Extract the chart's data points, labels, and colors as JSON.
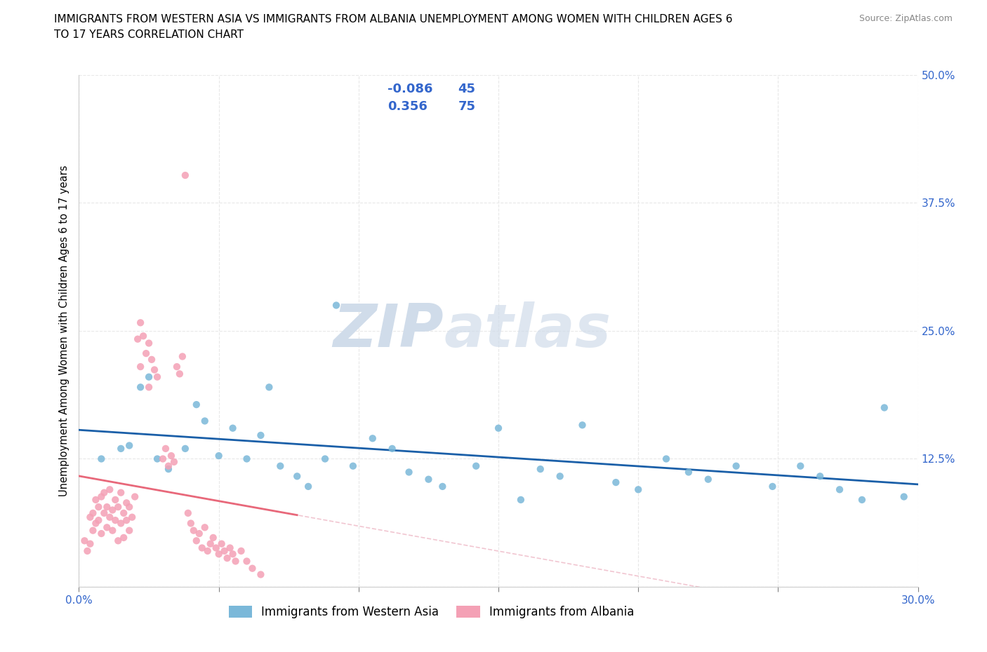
{
  "title_line1": "IMMIGRANTS FROM WESTERN ASIA VS IMMIGRANTS FROM ALBANIA UNEMPLOYMENT AMONG WOMEN WITH CHILDREN AGES 6",
  "title_line2": "TO 17 YEARS CORRELATION CHART",
  "source": "Source: ZipAtlas.com",
  "ylabel": "Unemployment Among Women with Children Ages 6 to 17 years",
  "xlim": [
    0.0,
    0.3
  ],
  "ylim": [
    0.0,
    0.5
  ],
  "xticks": [
    0.0,
    0.05,
    0.1,
    0.15,
    0.2,
    0.25,
    0.3
  ],
  "yticks": [
    0.0,
    0.125,
    0.25,
    0.375,
    0.5
  ],
  "xticklabels": [
    "0.0%",
    "",
    "",
    "",
    "",
    "",
    "30.0%"
  ],
  "yticklabels_right": [
    "",
    "12.5%",
    "25.0%",
    "37.5%",
    "50.0%"
  ],
  "western_asia_R": -0.086,
  "western_asia_N": 45,
  "albania_R": 0.356,
  "albania_N": 75,
  "western_asia_color": "#7ab8d9",
  "albania_color": "#f4a0b5",
  "western_asia_line_color": "#1a5fa8",
  "albania_line_color": "#f4a0b5",
  "albania_dashed_line_color": "#f0c0cc",
  "r_n_color": "#3366cc",
  "legend_label_western": "Immigrants from Western Asia",
  "legend_label_albania": "Immigrants from Albania",
  "background_color": "#ffffff",
  "grid_color": "#e8e8e8",
  "watermark_color": "#d0dcea",
  "wa_x": [
    0.008,
    0.015,
    0.018,
    0.022,
    0.025,
    0.028,
    0.032,
    0.038,
    0.042,
    0.045,
    0.05,
    0.055,
    0.06,
    0.065,
    0.068,
    0.072,
    0.078,
    0.082,
    0.088,
    0.092,
    0.098,
    0.105,
    0.112,
    0.118,
    0.125,
    0.13,
    0.142,
    0.15,
    0.158,
    0.165,
    0.172,
    0.18,
    0.192,
    0.2,
    0.21,
    0.218,
    0.225,
    0.235,
    0.248,
    0.258,
    0.265,
    0.272,
    0.28,
    0.288,
    0.295
  ],
  "wa_y": [
    0.125,
    0.135,
    0.138,
    0.195,
    0.205,
    0.125,
    0.115,
    0.135,
    0.178,
    0.162,
    0.128,
    0.155,
    0.125,
    0.148,
    0.195,
    0.118,
    0.108,
    0.098,
    0.125,
    0.275,
    0.118,
    0.145,
    0.135,
    0.112,
    0.105,
    0.098,
    0.118,
    0.155,
    0.085,
    0.115,
    0.108,
    0.158,
    0.102,
    0.095,
    0.125,
    0.112,
    0.105,
    0.118,
    0.098,
    0.118,
    0.108,
    0.095,
    0.085,
    0.175,
    0.088
  ],
  "alb_x": [
    0.002,
    0.003,
    0.004,
    0.004,
    0.005,
    0.005,
    0.006,
    0.006,
    0.007,
    0.007,
    0.008,
    0.008,
    0.009,
    0.009,
    0.01,
    0.01,
    0.011,
    0.011,
    0.012,
    0.012,
    0.013,
    0.013,
    0.014,
    0.014,
    0.015,
    0.015,
    0.016,
    0.016,
    0.017,
    0.017,
    0.018,
    0.018,
    0.019,
    0.02,
    0.021,
    0.022,
    0.022,
    0.023,
    0.024,
    0.025,
    0.025,
    0.026,
    0.027,
    0.028,
    0.03,
    0.031,
    0.032,
    0.033,
    0.034,
    0.035,
    0.036,
    0.037,
    0.038,
    0.039,
    0.04,
    0.041,
    0.042,
    0.043,
    0.044,
    0.045,
    0.046,
    0.047,
    0.048,
    0.049,
    0.05,
    0.051,
    0.052,
    0.053,
    0.054,
    0.055,
    0.056,
    0.058,
    0.06,
    0.062,
    0.065
  ],
  "alb_y": [
    0.045,
    0.035,
    0.042,
    0.068,
    0.055,
    0.072,
    0.062,
    0.085,
    0.078,
    0.065,
    0.088,
    0.052,
    0.072,
    0.092,
    0.058,
    0.078,
    0.068,
    0.095,
    0.075,
    0.055,
    0.085,
    0.065,
    0.078,
    0.045,
    0.062,
    0.092,
    0.072,
    0.048,
    0.065,
    0.082,
    0.055,
    0.078,
    0.068,
    0.088,
    0.242,
    0.258,
    0.215,
    0.245,
    0.228,
    0.238,
    0.195,
    0.222,
    0.212,
    0.205,
    0.125,
    0.135,
    0.118,
    0.128,
    0.122,
    0.215,
    0.208,
    0.225,
    0.402,
    0.072,
    0.062,
    0.055,
    0.045,
    0.052,
    0.038,
    0.058,
    0.035,
    0.042,
    0.048,
    0.038,
    0.032,
    0.042,
    0.035,
    0.028,
    0.038,
    0.032,
    0.025,
    0.035,
    0.025,
    0.018,
    0.012
  ]
}
